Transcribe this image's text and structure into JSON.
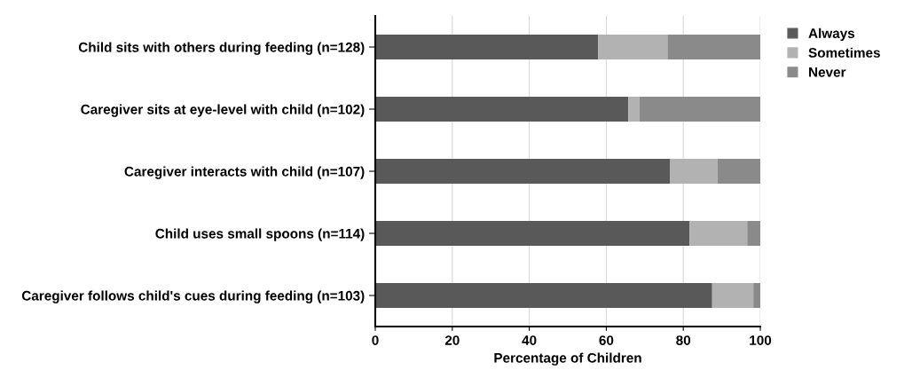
{
  "chart_data": {
    "type": "bar",
    "orientation": "horizontal",
    "stacked": true,
    "xlabel": "Percentage of Children",
    "categories": [
      "Child sits with others during feeding (n=128)",
      "Caregiver sits at eye-level with child (n=102)",
      "Caregiver interacts with child (n=107)",
      "Child uses small spoons (n=114)",
      "Caregiver follows child's cues during feeding (n=103)"
    ],
    "series": [
      {
        "name": "Always",
        "color": "#595959",
        "values": [
          57.9,
          65.7,
          76.6,
          81.6,
          87.5
        ]
      },
      {
        "name": "Sometimes",
        "color": "#b2b2b2",
        "values": [
          18.0,
          2.9,
          12.3,
          15.0,
          10.7
        ]
      },
      {
        "name": "Never",
        "color": "#8a8a8a",
        "values": [
          24.1,
          31.4,
          11.1,
          3.4,
          1.8
        ]
      }
    ],
    "xlim": [
      0,
      100
    ],
    "xticks": [
      0,
      20,
      40,
      60,
      80,
      100
    ],
    "grid": "x",
    "legend": "top right"
  }
}
